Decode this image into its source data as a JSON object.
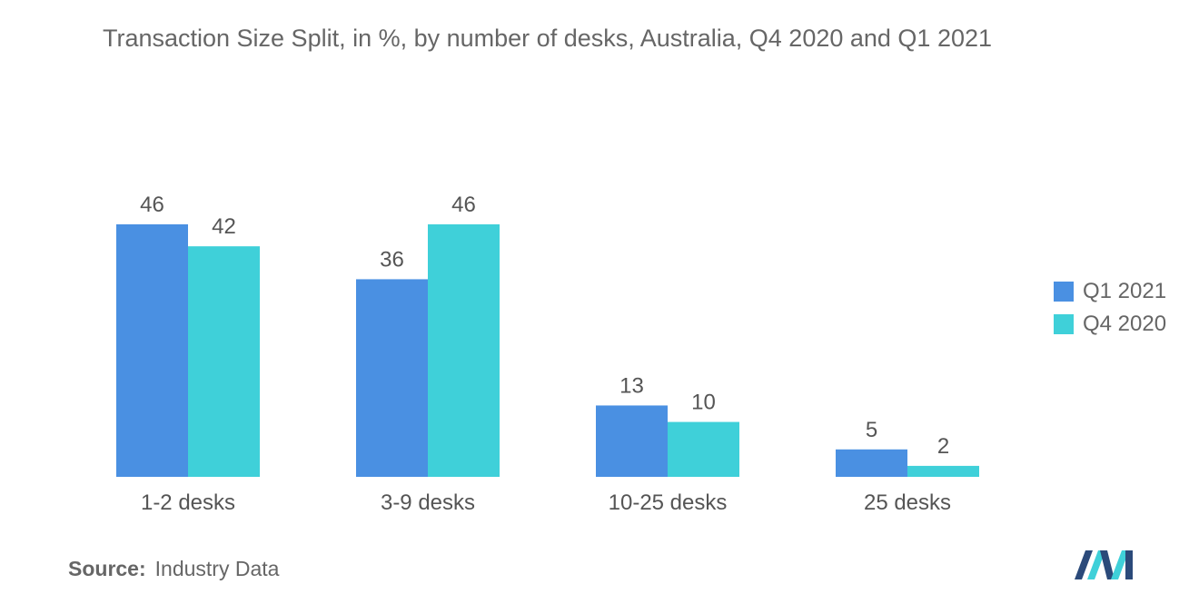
{
  "chart_data": {
    "type": "bar",
    "title": "Transaction Size Split, in %, by number of desks, Australia, Q4 2020 and Q1 2021",
    "categories": [
      "1-2 desks",
      "3-9 desks",
      "10-25 desks",
      "25 desks"
    ],
    "series": [
      {
        "name": "Q1 2021",
        "values": [
          46,
          36,
          13,
          5
        ],
        "color": "#4a90e2"
      },
      {
        "name": "Q4 2020",
        "values": [
          42,
          46,
          10,
          2
        ],
        "color": "#3fd0d9"
      }
    ],
    "xlabel": "",
    "ylabel": "",
    "ylim": [
      0,
      46
    ],
    "grid": false,
    "legend_position": "right"
  },
  "source": {
    "label": "Source:",
    "text": "Industry Data"
  },
  "logo": {
    "icon": "mordor-intelligence-logo-icon",
    "colors": [
      "#2b4a7a",
      "#3fd0d9"
    ]
  }
}
